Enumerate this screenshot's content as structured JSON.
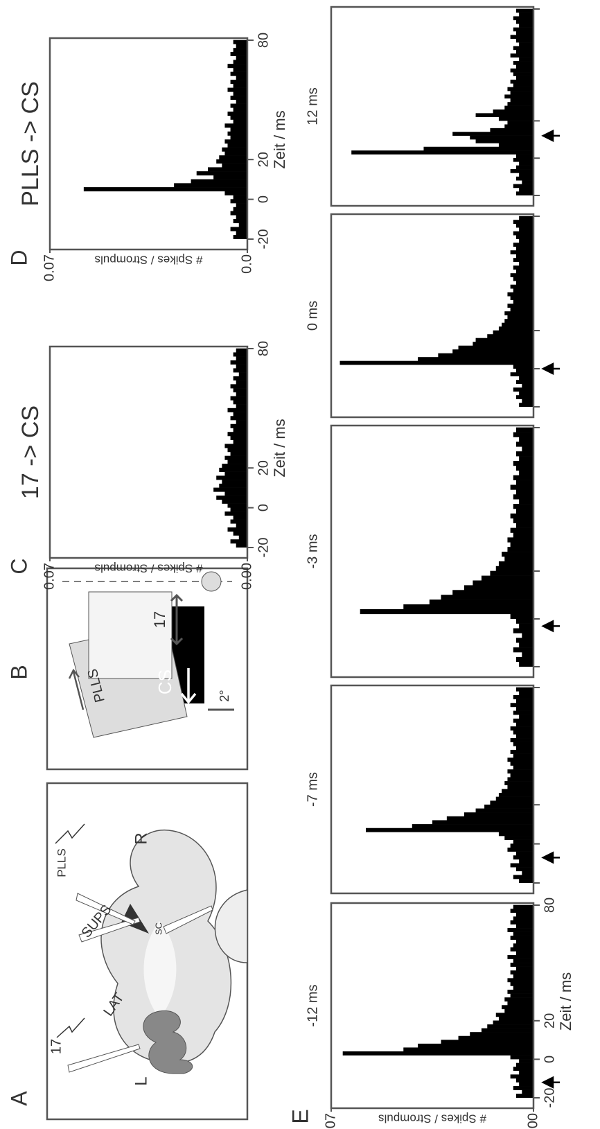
{
  "diagrams": {
    "A": {
      "panel": "A",
      "labels": [
        "L",
        "R",
        "17",
        "LAT",
        "SUPS",
        "PLLS",
        "SC"
      ]
    },
    "B": {
      "panel": "B",
      "labels": [
        "PLLS",
        "17",
        "CS",
        "2°"
      ]
    }
  },
  "chart_data": [
    {
      "type": "histogram",
      "panel": "C",
      "title": "17 -> CS",
      "xlabel": "Zeit / ms",
      "ylabel": "# Spikes / Strompuls",
      "color": "#000000",
      "xlim": [
        -20,
        80
      ],
      "xticks": [
        -20,
        0,
        20,
        80
      ],
      "ylim": [
        0,
        0.07
      ],
      "yticks": [
        {
          "value": 0,
          "label": "0.00"
        },
        0.07
      ],
      "bins": [
        -20,
        -18,
        -16,
        -14,
        -12,
        -10,
        -8,
        -6,
        -4,
        -2,
        0,
        2,
        4,
        6,
        8,
        10,
        12,
        14,
        16,
        18,
        20,
        22,
        24,
        26,
        28,
        30,
        32,
        34,
        36,
        38,
        40,
        42,
        44,
        46,
        48,
        50,
        52,
        54,
        56,
        58,
        60,
        62,
        64,
        66,
        68,
        70,
        72,
        74,
        76,
        78,
        80
      ],
      "values": [
        0.004,
        0.006,
        0.003,
        0.005,
        0.007,
        0.004,
        0.006,
        0.005,
        0.008,
        0.006,
        0.007,
        0.009,
        0.011,
        0.008,
        0.012,
        0.01,
        0.009,
        0.011,
        0.008,
        0.01,
        0.009,
        0.007,
        0.008,
        0.006,
        0.007,
        0.008,
        0.005,
        0.006,
        0.007,
        0.005,
        0.006,
        0.004,
        0.006,
        0.005,
        0.007,
        0.004,
        0.005,
        0.006,
        0.004,
        0.005,
        0.006,
        0.004,
        0.005,
        0.003,
        0.005,
        0.004,
        0.006,
        0.004,
        0.005,
        0.004
      ]
    },
    {
      "type": "histogram",
      "panel": "D",
      "title": "PLLS -> CS",
      "xlabel": "Zeit / ms",
      "ylabel": "# Spikes / Strompuls",
      "color": "#000000",
      "xlim": [
        -20,
        80
      ],
      "xticks": [
        -20,
        0,
        20,
        80
      ],
      "ylim": [
        0,
        0.07
      ],
      "yticks": [
        {
          "value": 0,
          "label": "0.0"
        },
        0.07
      ],
      "bins": [
        -20,
        -18,
        -16,
        -14,
        -12,
        -10,
        -8,
        -6,
        -4,
        -2,
        0,
        2,
        4,
        6,
        8,
        10,
        12,
        14,
        16,
        18,
        20,
        22,
        24,
        26,
        28,
        30,
        32,
        34,
        36,
        38,
        40,
        42,
        44,
        46,
        48,
        50,
        52,
        54,
        56,
        58,
        60,
        62,
        64,
        66,
        68,
        70,
        72,
        74,
        76,
        78,
        80
      ],
      "values": [
        0.005,
        0.004,
        0.006,
        0.003,
        0.005,
        0.004,
        0.006,
        0.005,
        0.004,
        0.006,
        0.005,
        0.008,
        0.058,
        0.026,
        0.02,
        0.012,
        0.018,
        0.014,
        0.009,
        0.011,
        0.01,
        0.008,
        0.009,
        0.007,
        0.008,
        0.006,
        0.007,
        0.006,
        0.008,
        0.005,
        0.006,
        0.007,
        0.005,
        0.006,
        0.004,
        0.006,
        0.005,
        0.007,
        0.005,
        0.006,
        0.004,
        0.006,
        0.005,
        0.007,
        0.005,
        0.004,
        0.006,
        0.005,
        0.004,
        0.005
      ]
    },
    {
      "type": "histogram",
      "panel": "E",
      "title": "-12 ms",
      "xlabel": "Zeit / ms",
      "ylabel": "# Spikes / Strompuls",
      "color": "#000000",
      "arrow": -12,
      "xlim": [
        -20,
        80
      ],
      "xticks": [
        -20,
        0,
        20,
        80
      ],
      "ylim": [
        0,
        0.07
      ],
      "yticks": [
        {
          "value": 0,
          "label": "0.00"
        },
        0.07
      ],
      "bins": [
        -20,
        -18,
        -16,
        -14,
        -12,
        -10,
        -8,
        -6,
        -4,
        -2,
        0,
        2,
        4,
        6,
        8,
        10,
        12,
        14,
        16,
        18,
        20,
        22,
        24,
        26,
        28,
        30,
        32,
        34,
        36,
        38,
        40,
        42,
        44,
        46,
        48,
        50,
        52,
        54,
        56,
        58,
        60,
        62,
        64,
        66,
        68,
        70,
        72,
        74,
        76,
        78,
        80
      ],
      "values": [
        0.006,
        0.004,
        0.007,
        0.005,
        0.006,
        0.008,
        0.005,
        0.007,
        0.006,
        0.005,
        0.008,
        0.066,
        0.045,
        0.04,
        0.032,
        0.026,
        0.022,
        0.018,
        0.016,
        0.014,
        0.012,
        0.013,
        0.01,
        0.011,
        0.009,
        0.01,
        0.008,
        0.009,
        0.007,
        0.008,
        0.009,
        0.007,
        0.008,
        0.006,
        0.008,
        0.007,
        0.009,
        0.006,
        0.008,
        0.007,
        0.006,
        0.008,
        0.007,
        0.009,
        0.006,
        0.008,
        0.007,
        0.006,
        0.008,
        0.007
      ]
    },
    {
      "type": "histogram",
      "title": "-7 ms",
      "color": "#000000",
      "arrow": -7,
      "xlim": [
        -20,
        80
      ],
      "xticks": [
        -20,
        0,
        20,
        80
      ],
      "tick_labels": false,
      "ylim": [
        0,
        0.07
      ],
      "bins": [
        -20,
        -18,
        -16,
        -14,
        -12,
        -10,
        -8,
        -6,
        -4,
        -2,
        0,
        2,
        4,
        6,
        8,
        10,
        12,
        14,
        16,
        18,
        20,
        22,
        24,
        26,
        28,
        30,
        32,
        34,
        36,
        38,
        40,
        42,
        44,
        46,
        48,
        50,
        52,
        54,
        56,
        58,
        60,
        62,
        64,
        66,
        68,
        70,
        72,
        74,
        76,
        78,
        80
      ],
      "values": [
        0.005,
        0.007,
        0.004,
        0.006,
        0.008,
        0.005,
        0.007,
        0.006,
        0.009,
        0.008,
        0.007,
        0.01,
        0.012,
        0.058,
        0.042,
        0.035,
        0.03,
        0.024,
        0.02,
        0.017,
        0.015,
        0.013,
        0.012,
        0.011,
        0.009,
        0.01,
        0.009,
        0.008,
        0.009,
        0.007,
        0.008,
        0.009,
        0.007,
        0.008,
        0.006,
        0.007,
        0.008,
        0.006,
        0.007,
        0.008,
        0.006,
        0.007,
        0.005,
        0.007,
        0.006,
        0.008,
        0.006,
        0.007,
        0.005,
        0.006
      ]
    },
    {
      "type": "histogram",
      "title": "-3 ms",
      "color": "#000000",
      "arrow": -3,
      "xlim": [
        -20,
        80
      ],
      "xticks": [
        -20,
        0,
        20,
        80
      ],
      "tick_labels": false,
      "ylim": [
        0,
        0.07
      ],
      "bins": [
        -20,
        -18,
        -16,
        -14,
        -12,
        -10,
        -8,
        -6,
        -4,
        -2,
        0,
        2,
        4,
        6,
        8,
        10,
        12,
        14,
        16,
        18,
        20,
        22,
        24,
        26,
        28,
        30,
        32,
        34,
        36,
        38,
        40,
        42,
        44,
        46,
        48,
        50,
        52,
        54,
        56,
        58,
        60,
        62,
        64,
        66,
        68,
        70,
        72,
        74,
        76,
        78,
        80
      ],
      "values": [
        0.005,
        0.006,
        0.004,
        0.007,
        0.005,
        0.006,
        0.004,
        0.007,
        0.005,
        0.006,
        0.008,
        0.06,
        0.045,
        0.036,
        0.032,
        0.028,
        0.024,
        0.021,
        0.018,
        0.015,
        0.013,
        0.012,
        0.01,
        0.011,
        0.009,
        0.008,
        0.009,
        0.007,
        0.008,
        0.006,
        0.007,
        0.008,
        0.006,
        0.007,
        0.005,
        0.007,
        0.006,
        0.008,
        0.006,
        0.007,
        0.005,
        0.006,
        0.007,
        0.005,
        0.006,
        0.004,
        0.006,
        0.005,
        0.007,
        0.006
      ]
    },
    {
      "type": "histogram",
      "title": "0 ms",
      "color": "#000000",
      "arrow": 0,
      "xlim": [
        -20,
        80
      ],
      "xticks": [
        -20,
        0,
        20,
        80
      ],
      "tick_labels": false,
      "ylim": [
        0,
        0.07
      ],
      "bins": [
        -20,
        -18,
        -16,
        -14,
        -12,
        -10,
        -8,
        -6,
        -4,
        -2,
        0,
        2,
        4,
        6,
        8,
        10,
        12,
        14,
        16,
        18,
        20,
        22,
        24,
        26,
        28,
        30,
        32,
        34,
        36,
        38,
        40,
        42,
        44,
        46,
        48,
        50,
        52,
        54,
        56,
        58,
        60,
        62,
        64,
        66,
        68,
        70,
        72,
        74,
        76,
        78,
        80
      ],
      "values": [
        0.005,
        0.004,
        0.006,
        0.005,
        0.007,
        0.004,
        0.006,
        0.005,
        0.008,
        0.006,
        0.007,
        0.067,
        0.04,
        0.033,
        0.028,
        0.026,
        0.021,
        0.02,
        0.016,
        0.014,
        0.012,
        0.011,
        0.01,
        0.009,
        0.01,
        0.008,
        0.009,
        0.007,
        0.008,
        0.009,
        0.007,
        0.008,
        0.006,
        0.007,
        0.008,
        0.006,
        0.007,
        0.005,
        0.007,
        0.006,
        0.008,
        0.006,
        0.007,
        0.005,
        0.006,
        0.007,
        0.005,
        0.006,
        0.007,
        0.005
      ]
    },
    {
      "type": "histogram",
      "title": "12 ms",
      "color": "#000000",
      "arrow": 12,
      "xlim": [
        -20,
        80
      ],
      "xticks": [
        -20,
        0,
        20,
        80
      ],
      "tick_labels": false,
      "ylim": [
        0,
        0.07
      ],
      "bins": [
        -20,
        -18,
        -16,
        -14,
        -12,
        -10,
        -8,
        -6,
        -4,
        -2,
        0,
        2,
        4,
        6,
        8,
        10,
        12,
        14,
        16,
        18,
        20,
        22,
        24,
        26,
        28,
        30,
        32,
        34,
        36,
        38,
        40,
        42,
        44,
        46,
        48,
        50,
        52,
        54,
        56,
        58,
        60,
        62,
        64,
        66,
        68,
        70,
        72,
        74,
        76,
        78,
        80
      ],
      "values": [
        0.006,
        0.005,
        0.007,
        0.004,
        0.006,
        0.005,
        0.008,
        0.006,
        0.005,
        0.007,
        0.006,
        0.063,
        0.038,
        0.012,
        0.02,
        0.022,
        0.028,
        0.015,
        0.01,
        0.009,
        0.012,
        0.02,
        0.014,
        0.01,
        0.009,
        0.008,
        0.01,
        0.008,
        0.009,
        0.007,
        0.008,
        0.006,
        0.007,
        0.008,
        0.006,
        0.007,
        0.005,
        0.008,
        0.006,
        0.007,
        0.005,
        0.006,
        0.008,
        0.006,
        0.007,
        0.005,
        0.006,
        0.007,
        0.005,
        0.006
      ]
    }
  ]
}
